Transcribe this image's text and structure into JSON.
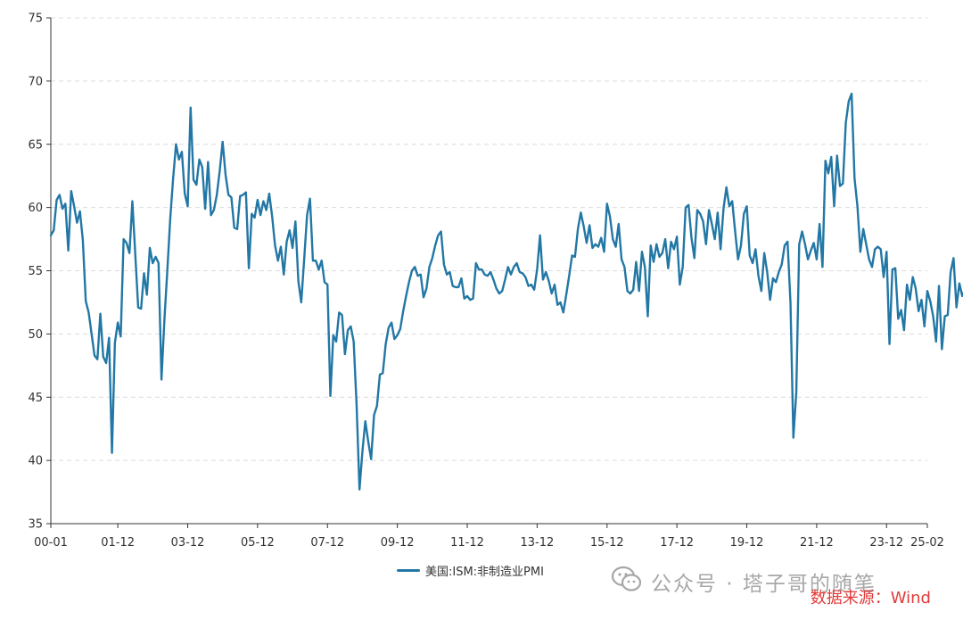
{
  "chart_data": {
    "type": "line",
    "title": "",
    "xlabel": "",
    "ylabel": "",
    "ylim": [
      35,
      75
    ],
    "yticks": [
      35,
      40,
      45,
      50,
      55,
      60,
      65,
      70,
      75
    ],
    "xticks": [
      "00-01",
      "01-12",
      "03-12",
      "05-12",
      "07-12",
      "09-12",
      "11-12",
      "13-12",
      "15-12",
      "17-12",
      "19-12",
      "21-12",
      "23-12",
      "25-02"
    ],
    "x_start": "2000-01",
    "x_end": "2025-02",
    "grid": "horizontal dashed",
    "legend_position": "bottom-center",
    "series": [
      {
        "name": "美国:ISM:非制造业PMI",
        "color": "#2277a5",
        "values": [
          57.8,
          58.2,
          60.6,
          61.0,
          59.9,
          60.3,
          56.6,
          61.3,
          60.1,
          58.8,
          59.7,
          57.4,
          52.6,
          51.7,
          50.0,
          48.3,
          48.0,
          51.6,
          48.2,
          47.7,
          49.7,
          40.6,
          49.3,
          50.9,
          49.8,
          57.5,
          57.2,
          56.4,
          60.5,
          56.3,
          52.1,
          52.0,
          54.8,
          53.1,
          56.8,
          55.6,
          56.1,
          55.6,
          46.4,
          51.1,
          55.0,
          59.1,
          62.3,
          65.0,
          63.8,
          64.4,
          61.1,
          60.1,
          67.9,
          62.2,
          61.8,
          63.8,
          63.2,
          59.9,
          63.6,
          59.4,
          59.8,
          61.0,
          62.9,
          65.2,
          62.6,
          61.0,
          60.8,
          58.4,
          58.3,
          60.9,
          61.0,
          61.2,
          55.2,
          59.5,
          59.2,
          60.6,
          59.4,
          60.5,
          59.8,
          61.1,
          59.3,
          57.0,
          55.8,
          56.9,
          54.7,
          57.3,
          58.2,
          56.8,
          58.9,
          54.2,
          52.5,
          55.9,
          59.4,
          60.7,
          55.8,
          55.8,
          55.1,
          55.8,
          54.1,
          53.9,
          45.1,
          49.9,
          49.4,
          51.7,
          51.5,
          48.4,
          50.3,
          50.6,
          49.4,
          44.4,
          37.7,
          40.7,
          43.1,
          41.5,
          40.1,
          43.6,
          44.3,
          46.8,
          46.9,
          49.2,
          50.5,
          50.9,
          49.6,
          49.9,
          50.4,
          51.8,
          53.0,
          54.1,
          55.0,
          55.3,
          54.6,
          54.7,
          52.9,
          53.6,
          55.3,
          56.0,
          57.0,
          57.8,
          58.1,
          55.5,
          54.7,
          54.9,
          53.8,
          53.7,
          53.7,
          54.4,
          52.8,
          53.0,
          52.7,
          52.8,
          55.6,
          55.1,
          55.1,
          54.7,
          54.6,
          54.9,
          54.3,
          53.6,
          53.2,
          53.4,
          54.3,
          55.3,
          54.7,
          55.3,
          55.6,
          54.9,
          54.8,
          54.5,
          53.8,
          53.9,
          53.5,
          55.1,
          57.8,
          54.3,
          54.9,
          54.2,
          53.2,
          53.9,
          52.3,
          52.5,
          51.7,
          53.1,
          54.6,
          56.2,
          56.1,
          58.3,
          59.6,
          58.5,
          57.2,
          58.6,
          56.8,
          57.1,
          56.9,
          57.6,
          56.5,
          60.3,
          59.3,
          57.5,
          56.9,
          58.7,
          55.9,
          55.3,
          53.4,
          53.2,
          53.5,
          55.7,
          53.4,
          56.5,
          55.3,
          51.4,
          57.0,
          55.7,
          57.1,
          56.1,
          56.4,
          57.5,
          55.2,
          57.3,
          56.7,
          57.7,
          53.9,
          55.3,
          60.0,
          60.2,
          57.6,
          56.0,
          59.8,
          59.5,
          58.9,
          57.1,
          59.8,
          58.7,
          57.5,
          59.6,
          56.7,
          59.9,
          61.6,
          60.1,
          60.5,
          58.1,
          55.9,
          57.0,
          59.5,
          60.1,
          56.2,
          55.6,
          56.7,
          54.6,
          53.4,
          56.4,
          54.9,
          52.7,
          54.4,
          54.1,
          54.9,
          55.5,
          57.0,
          57.3,
          52.5,
          41.8,
          45.4,
          57.1,
          58.1,
          57.1,
          55.9,
          56.6,
          57.2,
          55.9,
          58.7,
          55.3,
          63.7,
          62.7,
          64.0,
          60.1,
          64.1,
          61.7,
          61.9,
          66.7,
          68.4,
          69.0,
          62.3,
          60.1,
          56.5,
          58.3,
          57.1,
          55.9,
          55.3,
          56.7,
          56.9,
          56.7,
          54.5,
          56.5,
          49.2,
          55.1,
          55.2,
          51.2,
          51.9,
          50.3,
          53.9,
          52.7,
          54.5,
          53.6,
          51.8,
          52.7,
          50.6,
          53.4,
          52.6,
          51.4,
          49.4,
          53.8,
          48.8,
          51.4,
          51.5,
          54.9,
          56.0,
          52.1,
          54.0,
          53.0,
          53.5
        ]
      }
    ]
  },
  "legend": {
    "label": "美国:ISM:非制造业PMI"
  },
  "watermark": {
    "text": "公众号 · 塔子哥的随笔",
    "icon": "wechat-icon"
  },
  "source": {
    "text": "数据来源：Wind",
    "color": "#e23b3b"
  }
}
